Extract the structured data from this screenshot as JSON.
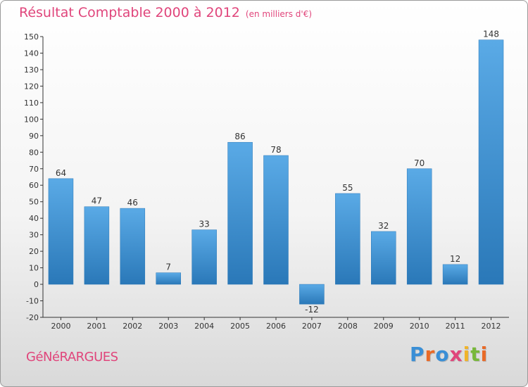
{
  "header": {
    "title": "Résultat Comptable 2000 à 2012",
    "subtitle": "(en milliers d'€)"
  },
  "footer": {
    "commune": "GéNéRARGUES",
    "brand": "Proxiti",
    "brand_colors": [
      "#3a8fd6",
      "#e96a27",
      "#3a8fd6",
      "#e0457b",
      "#f0b42a",
      "#78b83a",
      "#e96a27"
    ]
  },
  "colors": {
    "bar_light": "#5aaae6",
    "bar_dark": "#2a78b8",
    "title": "#e0457b"
  },
  "chart_data": {
    "type": "bar",
    "title": "Résultat Comptable 2000 à 2012",
    "subtitle": "(en milliers d'€)",
    "categories": [
      "2000",
      "2001",
      "2002",
      "2003",
      "2004",
      "2005",
      "2006",
      "2007",
      "2008",
      "2009",
      "2010",
      "2011",
      "2012"
    ],
    "values": [
      64,
      47,
      46,
      7,
      33,
      86,
      78,
      -12,
      55,
      32,
      70,
      12,
      148
    ],
    "xlabel": "",
    "ylabel": "",
    "ylim": [
      -20,
      150
    ],
    "yticks": [
      -20,
      -10,
      0,
      10,
      20,
      30,
      40,
      50,
      60,
      70,
      80,
      90,
      100,
      110,
      120,
      130,
      140,
      150
    ],
    "grid": false
  }
}
